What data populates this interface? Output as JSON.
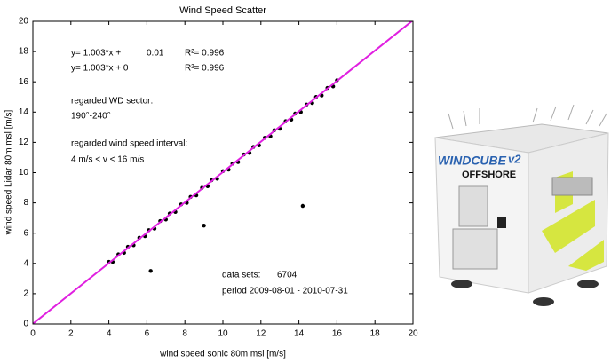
{
  "chart_data": {
    "type": "scatter",
    "title": "Wind Speed Scatter",
    "x_label": "wind speed sonic   80m msl [m/s]",
    "y_label": "wind speed Lidar   80m msl [m/s]",
    "xlim": [
      0,
      20
    ],
    "ylim": [
      0,
      20
    ],
    "xticks": [
      0,
      2,
      4,
      6,
      8,
      10,
      12,
      14,
      16,
      18,
      20
    ],
    "yticks": [
      0,
      2,
      4,
      6,
      8,
      10,
      12,
      14,
      16,
      18,
      20
    ],
    "series": [
      {
        "type": "scatter",
        "color": "#000000",
        "x": [
          4.0,
          4.2,
          4.5,
          4.8,
          5.0,
          5.3,
          5.6,
          5.9,
          6.1,
          6.4,
          6.7,
          7.0,
          7.2,
          7.5,
          7.8,
          8.1,
          8.3,
          8.6,
          8.9,
          9.2,
          9.4,
          9.7,
          10.0,
          10.3,
          10.5,
          10.8,
          11.1,
          11.4,
          11.6,
          11.9,
          12.2,
          12.5,
          12.7,
          13.0,
          13.3,
          13.6,
          13.8,
          14.1,
          14.4,
          14.7,
          14.9,
          15.2,
          15.5,
          15.8,
          16.0,
          6.2,
          14.2,
          9.0
        ],
        "values": [
          4.1,
          4.1,
          4.6,
          4.7,
          5.1,
          5.2,
          5.7,
          5.8,
          6.2,
          6.3,
          6.8,
          6.9,
          7.3,
          7.4,
          7.9,
          8.0,
          8.4,
          8.5,
          9.0,
          9.1,
          9.5,
          9.6,
          10.1,
          10.2,
          10.6,
          10.7,
          11.2,
          11.3,
          11.7,
          11.8,
          12.3,
          12.4,
          12.8,
          12.9,
          13.4,
          13.5,
          13.9,
          14.0,
          14.5,
          14.6,
          15.0,
          15.1,
          15.6,
          15.7,
          16.1,
          3.5,
          7.8,
          6.5
        ]
      },
      {
        "type": "line",
        "color": "#e020e0",
        "x": [
          0,
          20
        ],
        "values": [
          0.01,
          20.07
        ]
      }
    ],
    "annotations": [
      "y= 1.003*x +",
      "0.01",
      "R²= 0.996",
      "y= 1.003*x + 0",
      "R²= 0.996",
      "regarded WD sector:",
      "190°-240°",
      "regarded wind speed interval:",
      "4 m/s < v < 16 m/s",
      "data sets:",
      "6704",
      "period 2009-08-01 - 2010-07-31"
    ]
  },
  "photo": {
    "brand": "WINDCUBE",
    "model": "v2",
    "label": "OFFSHORE"
  }
}
